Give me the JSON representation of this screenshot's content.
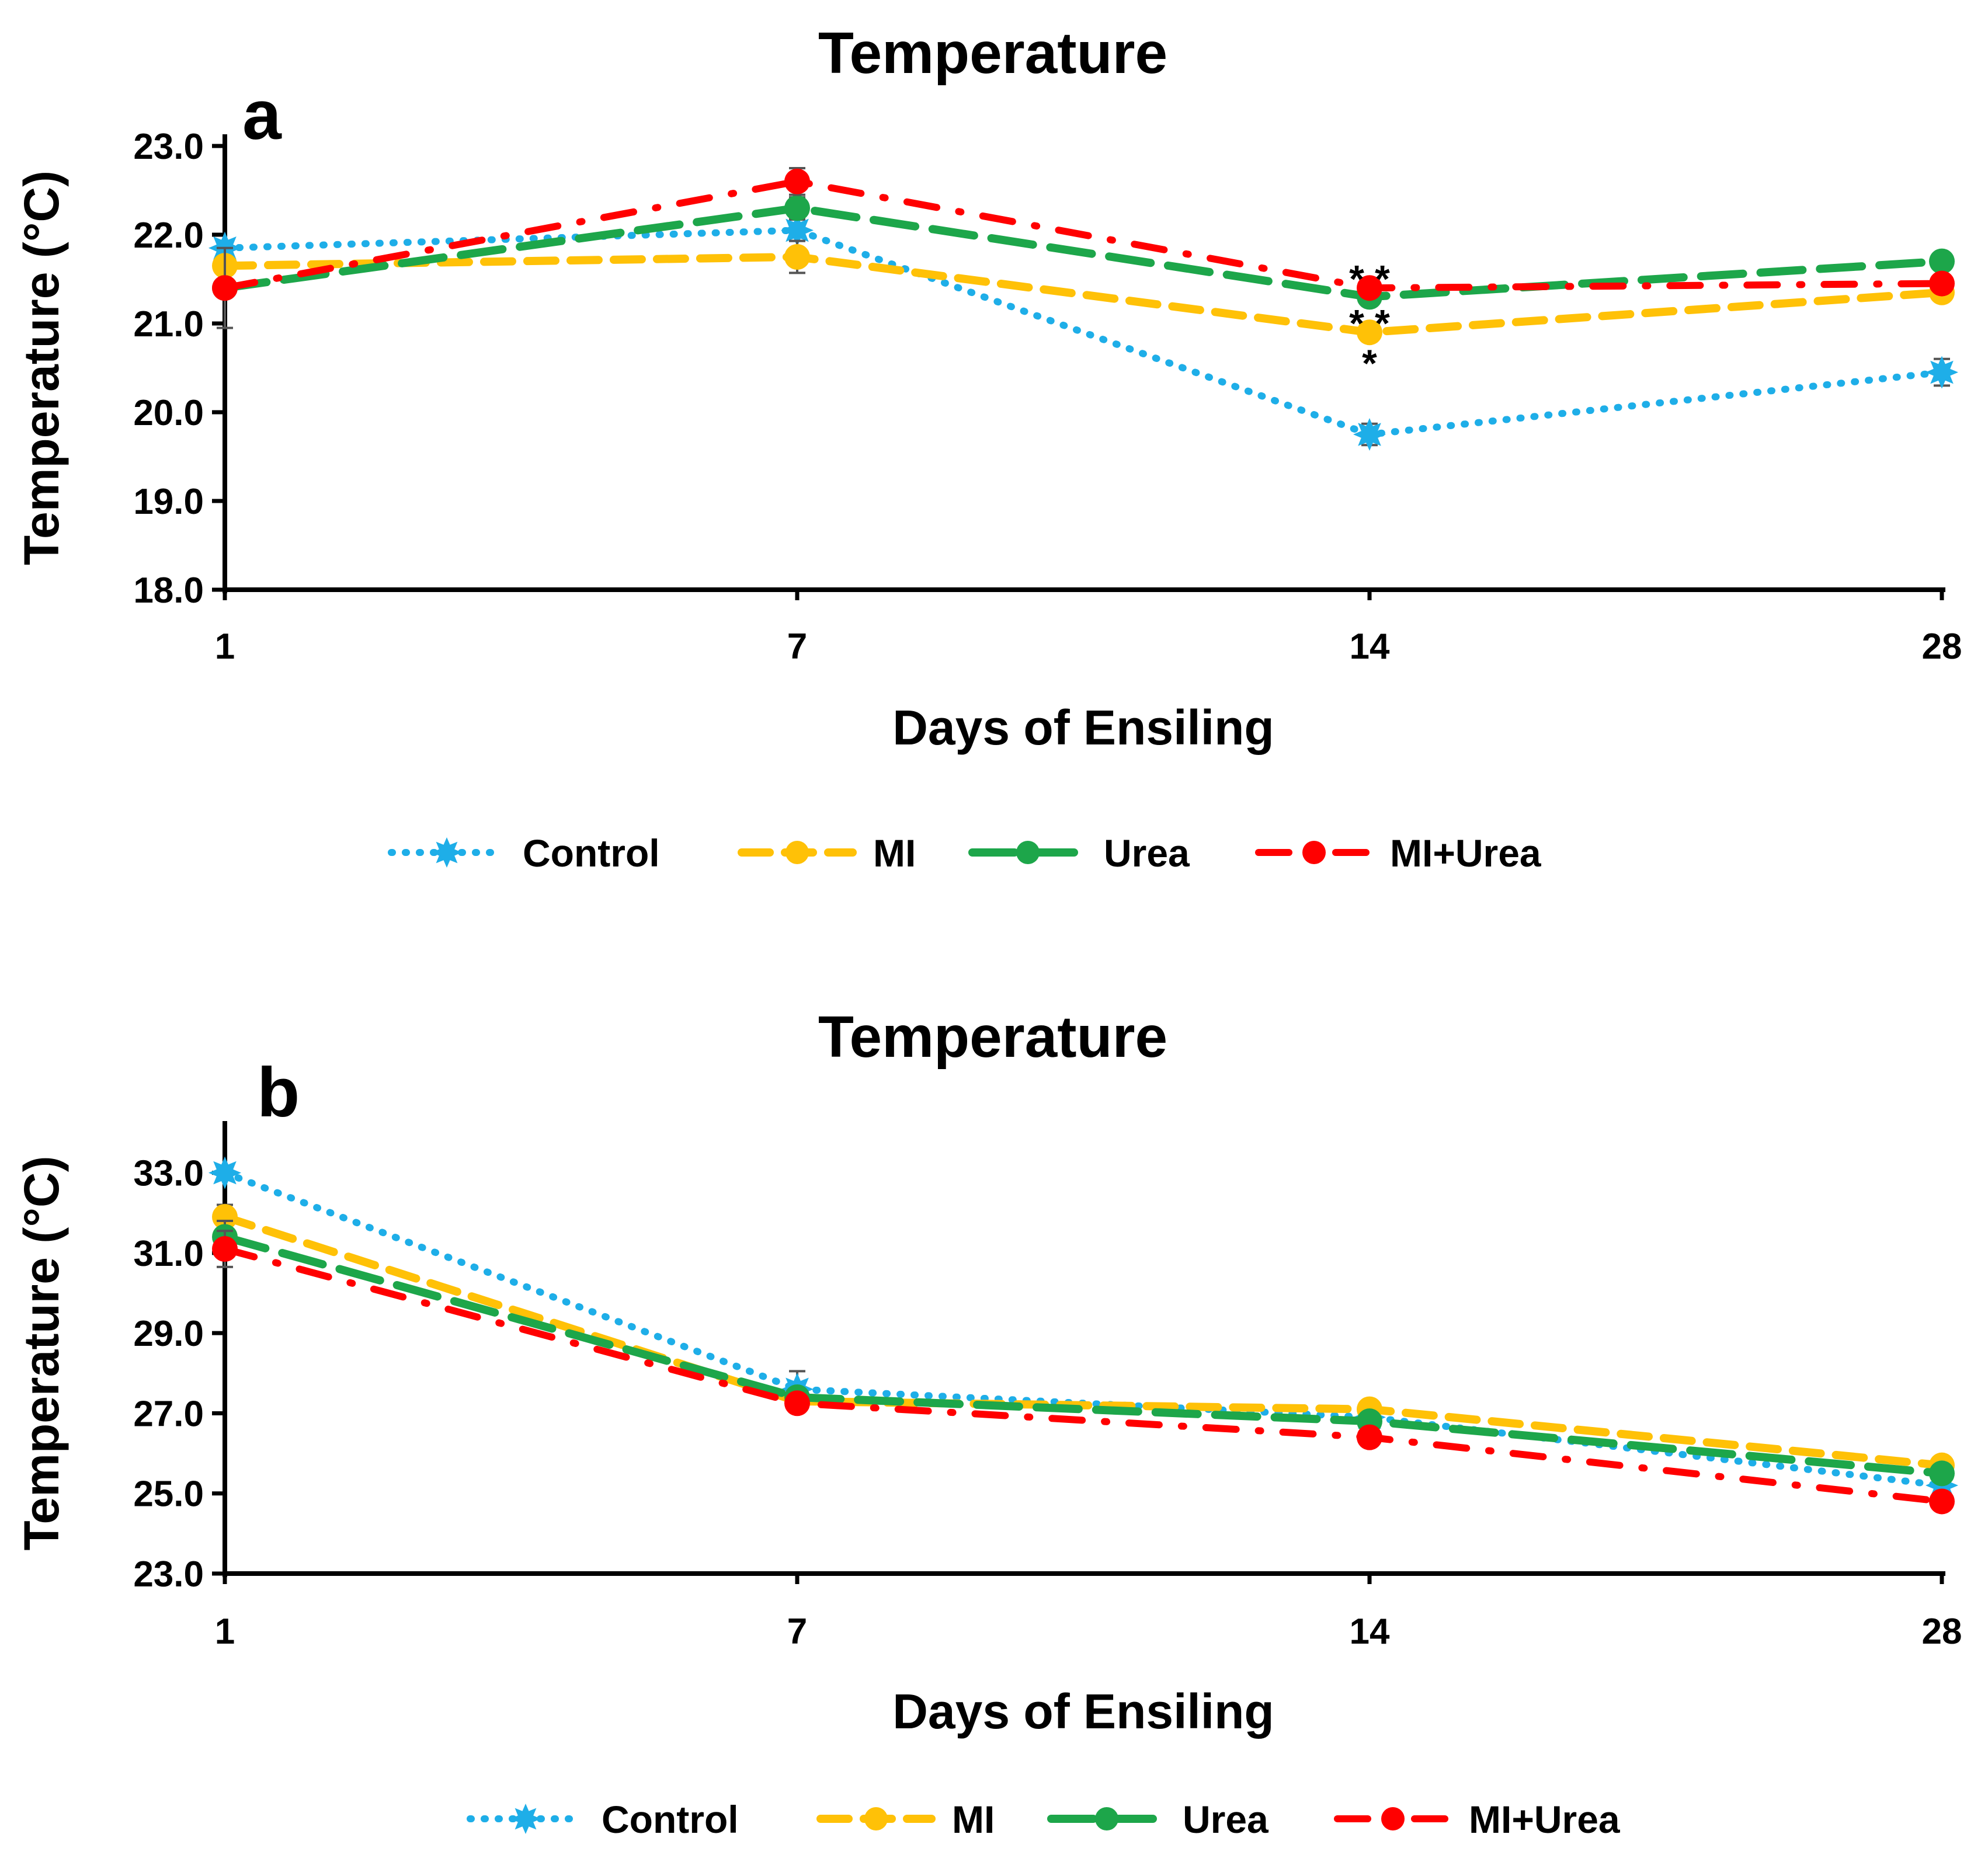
{
  "chart_data": [
    {
      "panel": "a",
      "type": "line",
      "title": "Temperature",
      "xlabel": "Days of Ensiling",
      "ylabel": "Temperature (°C)",
      "categories": [
        "1",
        "7",
        "14",
        "28"
      ],
      "ylim": [
        18.0,
        23.0
      ],
      "yticks": [
        "18.0",
        "19.0",
        "20.0",
        "21.0",
        "22.0",
        "23.0"
      ],
      "series": [
        {
          "name": "Control",
          "color": "#1EAEE8",
          "dash": "dotted",
          "marker": "star",
          "values": [
            21.85,
            22.05,
            19.75,
            20.45
          ],
          "err": [
            0.08,
            0.12,
            0.12,
            0.15
          ]
        },
        {
          "name": "MI",
          "color": "#FFC107",
          "dash": "dashed",
          "marker": "circle",
          "values": [
            21.65,
            21.75,
            20.9,
            21.35
          ],
          "err": [
            0.1,
            0.18,
            0.1,
            0.08
          ]
        },
        {
          "name": "Urea",
          "color": "#1DA64A",
          "dash": "longdash",
          "marker": "circle",
          "values": [
            21.4,
            22.3,
            21.3,
            21.7
          ],
          "err": [
            0.45,
            0.12,
            0.1,
            0.08
          ]
        },
        {
          "name": "MI+Urea",
          "color": "#FF0000",
          "dash": "dashdot",
          "marker": "circle",
          "values": [
            21.4,
            22.6,
            21.4,
            21.45
          ],
          "err": [
            0.1,
            0.15,
            0.1,
            0.08
          ]
        }
      ],
      "annotations": [
        {
          "text": "* *",
          "x": "14",
          "y": 21.55
        },
        {
          "text": "* *",
          "x": "14",
          "y": 21.05
        },
        {
          "text": "*",
          "x": "14",
          "y": 20.6
        }
      ],
      "legend": "bottom"
    },
    {
      "panel": "b",
      "type": "line",
      "title": "Temperature",
      "xlabel": "Days of Ensiling",
      "ylabel": "Temperature (°C)",
      "categories": [
        "1",
        "7",
        "14",
        "28"
      ],
      "ylim": [
        23.0,
        34.0
      ],
      "yticks": [
        "23.0",
        "25.0",
        "27.0",
        "29.0",
        "31.0",
        "33.0"
      ],
      "series": [
        {
          "name": "Control",
          "color": "#1EAEE8",
          "dash": "dotted",
          "marker": "star",
          "values": [
            33.0,
            27.6,
            26.9,
            25.2
          ],
          "err": [
            0.15,
            0.45,
            0.1,
            0.1
          ]
        },
        {
          "name": "MI",
          "color": "#FFC107",
          "dash": "dashed",
          "marker": "circle",
          "values": [
            31.9,
            27.3,
            27.1,
            25.7
          ],
          "err": [
            0.3,
            0.1,
            0.1,
            0.1
          ]
        },
        {
          "name": "Urea",
          "color": "#1DA64A",
          "dash": "longdash",
          "marker": "circle",
          "values": [
            31.4,
            27.4,
            26.8,
            25.5
          ],
          "err": [
            0.4,
            0.1,
            0.1,
            0.1
          ]
        },
        {
          "name": "MI+Urea",
          "color": "#FF0000",
          "dash": "dashdot",
          "marker": "circle",
          "values": [
            31.1,
            27.25,
            26.4,
            24.8
          ],
          "err": [
            0.45,
            0.1,
            0.1,
            0.1
          ]
        }
      ],
      "legend": "bottom"
    }
  ]
}
